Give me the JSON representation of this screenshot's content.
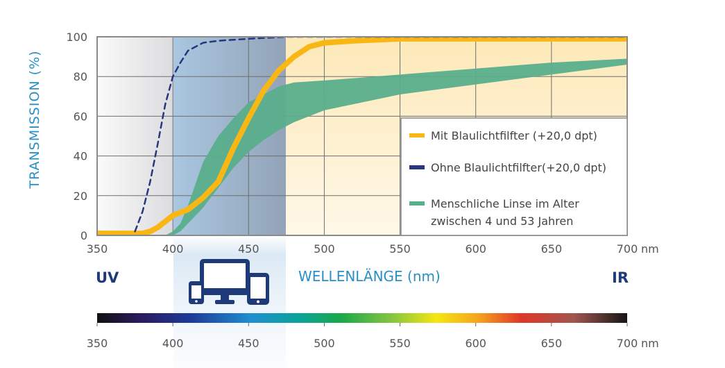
{
  "chart_data": {
    "type": "line",
    "ylabel": "TRANSMISSION (%)",
    "xlabel": "WELLENLÄNGE (nm)",
    "x_unit": "nm",
    "xlim": [
      350,
      700
    ],
    "ylim": [
      0,
      100
    ],
    "x_ticks": [
      "350",
      "400",
      "450",
      "500",
      "550",
      "600",
      "650",
      "700"
    ],
    "y_ticks": [
      "0",
      "20",
      "40",
      "60",
      "80",
      "100"
    ],
    "grid": true,
    "legend_position": "right",
    "region_labels": {
      "left": "UV",
      "right": "IR"
    },
    "spectrum_ticks": [
      "350",
      "400",
      "450",
      "500",
      "550",
      "600",
      "650",
      "700"
    ],
    "highlight_band_nm": [
      400,
      474
    ],
    "series": [
      {
        "name": "Mit Blaulichtfilfter (+20,0 dpt)",
        "style": "line",
        "color": "#f9b715",
        "x": [
          350,
          370,
          380,
          385,
          390,
          400,
          410,
          420,
          430,
          440,
          450,
          460,
          470,
          480,
          490,
          500,
          520,
          550,
          600,
          650,
          700
        ],
        "y": [
          1,
          1,
          1,
          2,
          4,
          10,
          13,
          19,
          27,
          44,
          59,
          73,
          83,
          90,
          95,
          97,
          98,
          99,
          99,
          99,
          99
        ]
      },
      {
        "name": "Ohne Blaulichtfilfter(+20,0 dpt)",
        "style": "dashed",
        "color": "#28367e",
        "x": [
          375,
          380,
          385,
          390,
          395,
          400,
          405,
          410,
          420,
          430,
          450,
          475,
          500,
          550,
          600,
          700
        ],
        "y": [
          2,
          12,
          27,
          46,
          66,
          80,
          87,
          93,
          97,
          98,
          99,
          100,
          100,
          100,
          100,
          100
        ]
      },
      {
        "name": "Menschliche Linse im Alter zwischen 4 und 53 Jahren",
        "style": "band",
        "color": "#5aae8c",
        "x": [
          390,
          395,
          400,
          405,
          410,
          420,
          430,
          440,
          450,
          460,
          470,
          480,
          500,
          550,
          600,
          650,
          700
        ],
        "upper": [
          0,
          0,
          2,
          6,
          15,
          37,
          50,
          59,
          67,
          71,
          75,
          77,
          78,
          81,
          84,
          87,
          89
        ],
        "lower": [
          0,
          0,
          0,
          2,
          6,
          14,
          24,
          34,
          42,
          48,
          53,
          57,
          63,
          71,
          76,
          81,
          86
        ]
      }
    ]
  }
}
